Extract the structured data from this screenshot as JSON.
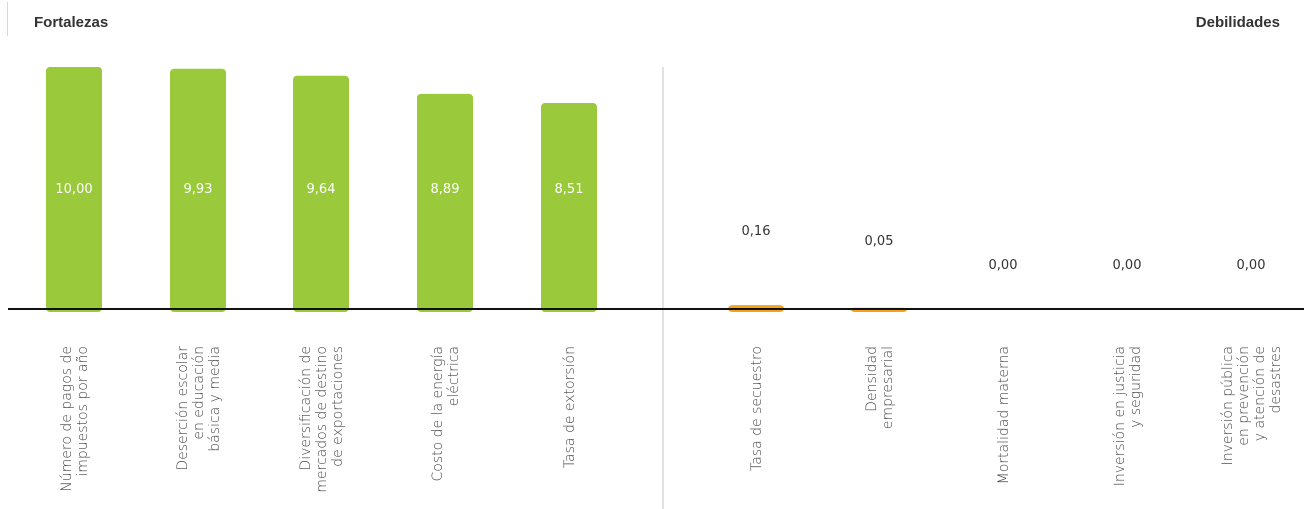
{
  "headers": {
    "left": "Fortalezas",
    "right": "Debilidades"
  },
  "colors": {
    "strength": "#9ac93c",
    "weakness": "#f5a31d",
    "baseline": "#111111",
    "divider": "#d9d9d9",
    "label_in": "#ffffff",
    "label_out": "#333333",
    "axis_text": "#444444"
  },
  "chart_data": {
    "type": "bar",
    "title": "",
    "ylim": [
      0,
      10.4
    ],
    "grid": false,
    "series": [
      {
        "name": "Fortalezas",
        "categories": [
          [
            "Número de pagos de",
            "impuestos por año"
          ],
          [
            "Deserción escolar",
            "en educación",
            "básica y media"
          ],
          [
            "Diversificación de",
            "mercados de destino",
            "de exportaciones"
          ],
          [
            "Costo de la energía",
            "eléctrica"
          ],
          [
            "Tasa de extorsión"
          ]
        ],
        "values": [
          10.0,
          9.93,
          9.64,
          8.89,
          8.51
        ],
        "labels": [
          "10,00",
          "9,93",
          "9,64",
          "8,89",
          "8,51"
        ]
      },
      {
        "name": "Debilidades",
        "categories": [
          [
            "Tasa de secuestro"
          ],
          [
            "Densidad",
            "empresarial"
          ],
          [
            "Mortalidad materna"
          ],
          [
            "Inversión en justicia",
            "y seguridad"
          ],
          [
            "Inversión pública",
            "en prevención",
            "y atención de",
            "desastres"
          ]
        ],
        "values": [
          0.16,
          0.05,
          0.0,
          0.0,
          0.0
        ],
        "labels": [
          "0,16",
          "0,05",
          "0,00",
          "0,00",
          "0,00"
        ]
      }
    ]
  }
}
